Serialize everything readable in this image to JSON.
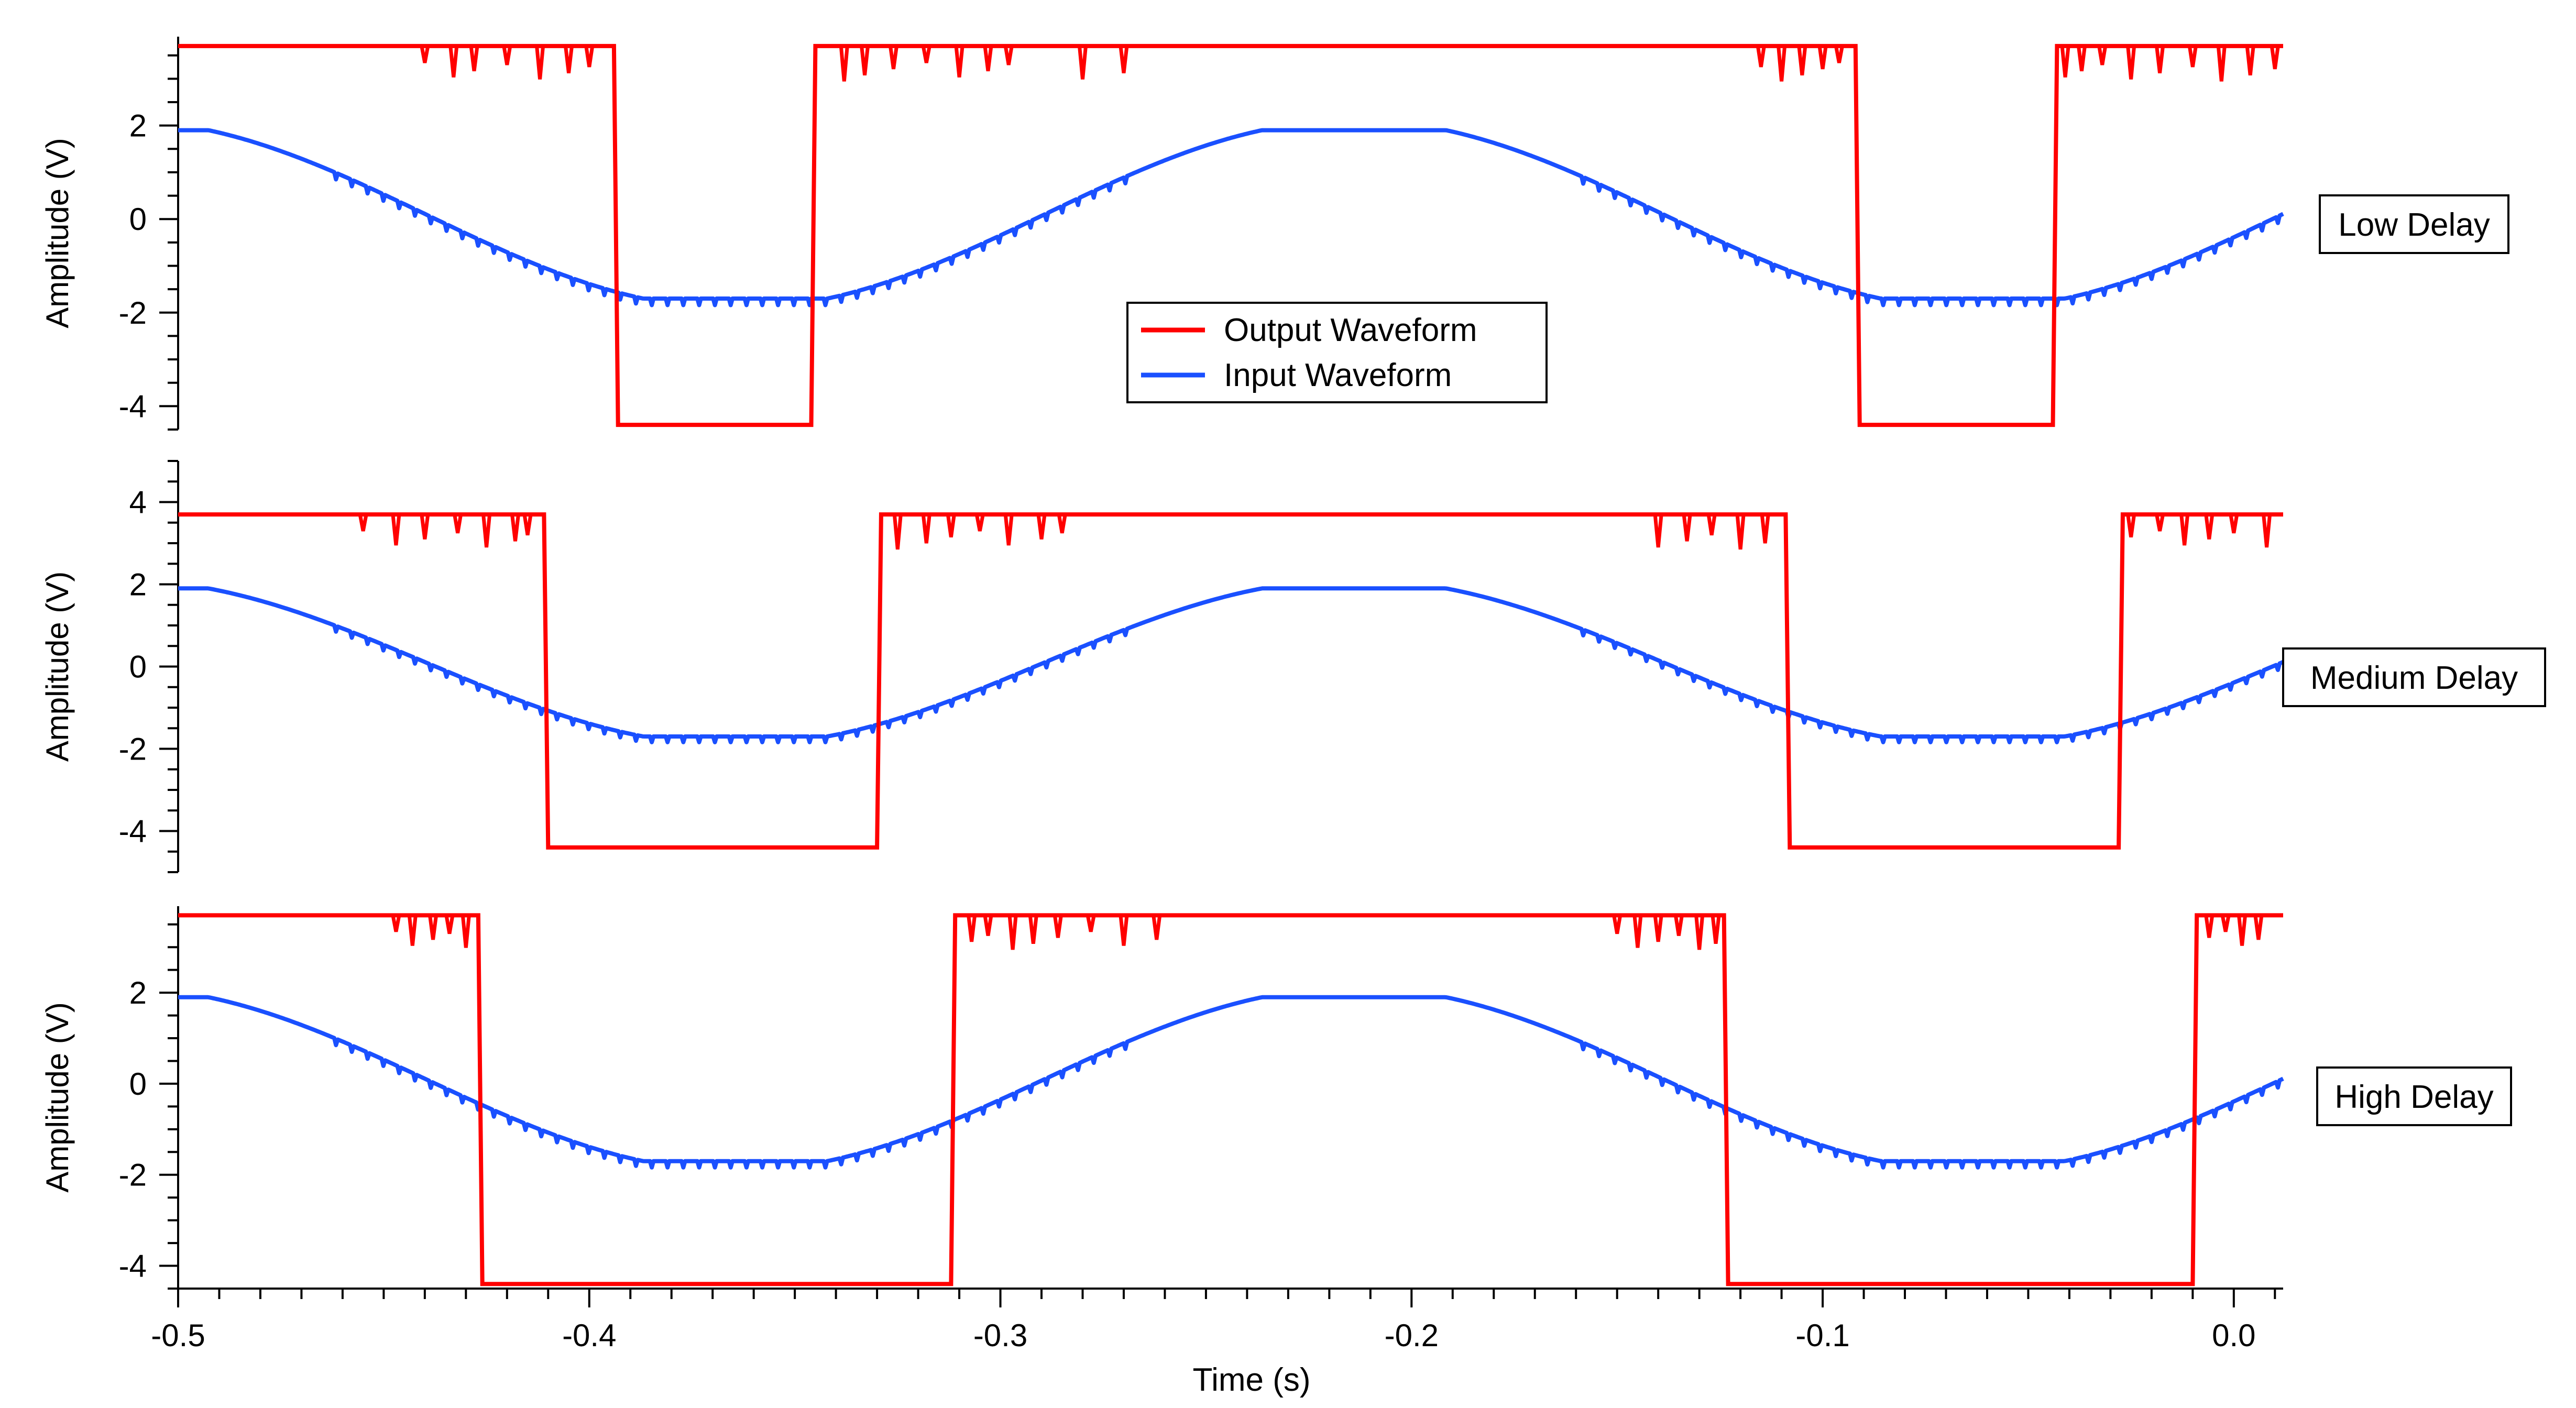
{
  "chart_data": [
    {
      "type": "line",
      "panel_label": "Low Delay",
      "xlabel": "",
      "ylabel": "Amplitude (V)",
      "xlim": [
        -0.5,
        0.012
      ],
      "ylim": [
        -4.5,
        3.9
      ],
      "y_ticks": [
        "2",
        "0",
        "-2",
        "-4"
      ],
      "y_tick_values": [
        2,
        0,
        -2,
        -4
      ],
      "series": [
        {
          "name": "Output Waveform",
          "color": "#ff0000",
          "points": [
            [
              -0.5,
              3.7
            ],
            [
              -0.394,
              3.7
            ],
            [
              -0.393,
              -4.4
            ],
            [
              -0.346,
              -4.4
            ],
            [
              -0.345,
              3.7
            ],
            [
              -0.092,
              3.7
            ],
            [
              -0.091,
              -4.4
            ],
            [
              -0.044,
              -4.4
            ],
            [
              -0.043,
              3.7
            ],
            [
              0.012,
              3.7
            ]
          ],
          "glitch_x": [
            -0.44,
            -0.433,
            -0.428,
            -0.42,
            -0.412,
            -0.405,
            -0.4,
            -0.338,
            -0.333,
            -0.326,
            -0.318,
            -0.31,
            -0.303,
            -0.298,
            -0.28,
            -0.27,
            -0.115,
            -0.11,
            -0.105,
            -0.1,
            -0.096,
            -0.041,
            -0.037,
            -0.032,
            -0.025,
            -0.018,
            -0.01,
            -0.003,
            0.004,
            0.01
          ],
          "glitch_depth": 0.8
        },
        {
          "name": "Input Waveform",
          "color": "#1a50ff",
          "period": 0.301,
          "x_start": -0.5,
          "x_end": 0.012,
          "y_max": 1.9,
          "y_min": -1.7,
          "x_peak": -0.214
        }
      ],
      "legend": {
        "position": "center",
        "entries": [
          "Output Waveform",
          "Input Waveform"
        ]
      }
    },
    {
      "type": "line",
      "panel_label": "Medium Delay",
      "xlabel": "",
      "ylabel": "Amplitude (V)",
      "xlim": [
        -0.5,
        0.012
      ],
      "ylim": [
        -5.0,
        5.0
      ],
      "y_ticks": [
        "4",
        "2",
        "0",
        "-2",
        "-4"
      ],
      "y_tick_values": [
        4,
        2,
        0,
        -2,
        -4
      ],
      "series": [
        {
          "name": "Output Waveform",
          "color": "#ff0000",
          "points": [
            [
              -0.5,
              3.7
            ],
            [
              -0.411,
              3.7
            ],
            [
              -0.41,
              -4.4
            ],
            [
              -0.33,
              -4.4
            ],
            [
              -0.329,
              3.7
            ],
            [
              -0.109,
              3.7
            ],
            [
              -0.108,
              -4.4
            ],
            [
              -0.028,
              -4.4
            ],
            [
              -0.027,
              3.7
            ],
            [
              0.012,
              3.7
            ]
          ],
          "glitch_x": [
            -0.455,
            -0.447,
            -0.44,
            -0.432,
            -0.425,
            -0.418,
            -0.415,
            -0.325,
            -0.318,
            -0.312,
            -0.305,
            -0.298,
            -0.29,
            -0.285,
            -0.14,
            -0.133,
            -0.127,
            -0.12,
            -0.114,
            -0.025,
            -0.018,
            -0.012,
            -0.006,
            0.0,
            0.008
          ],
          "glitch_depth": 0.9
        },
        {
          "name": "Input Waveform",
          "color": "#1a50ff",
          "period": 0.301,
          "x_start": -0.5,
          "x_end": 0.012,
          "y_max": 1.9,
          "y_min": -1.7,
          "x_peak": -0.214
        }
      ]
    },
    {
      "type": "line",
      "panel_label": "High Delay",
      "xlabel": "Time (s)",
      "ylabel": "Amplitude (V)",
      "xlim": [
        -0.5,
        0.012
      ],
      "ylim": [
        -4.5,
        3.9
      ],
      "y_ticks": [
        "2",
        "0",
        "-2",
        "-4"
      ],
      "y_tick_values": [
        2,
        0,
        -2,
        -4
      ],
      "x_ticks": [
        "-0.5",
        "-0.4",
        "-0.3",
        "-0.2",
        "-0.1",
        "0.0"
      ],
      "x_tick_values": [
        -0.5,
        -0.4,
        -0.3,
        -0.2,
        -0.1,
        0.0
      ],
      "series": [
        {
          "name": "Output Waveform",
          "color": "#ff0000",
          "points": [
            [
              -0.5,
              3.7
            ],
            [
              -0.427,
              3.7
            ],
            [
              -0.426,
              -4.4
            ],
            [
              -0.312,
              -4.4
            ],
            [
              -0.311,
              3.7
            ],
            [
              -0.124,
              3.7
            ],
            [
              -0.123,
              -4.4
            ],
            [
              -0.01,
              -4.4
            ],
            [
              -0.009,
              3.7
            ],
            [
              0.012,
              3.7
            ]
          ],
          "glitch_x": [
            -0.447,
            -0.443,
            -0.438,
            -0.434,
            -0.43,
            -0.307,
            -0.303,
            -0.297,
            -0.292,
            -0.286,
            -0.278,
            -0.27,
            -0.262,
            -0.15,
            -0.145,
            -0.14,
            -0.135,
            -0.13,
            -0.126,
            -0.006,
            -0.002,
            0.002,
            0.006
          ],
          "glitch_depth": 0.8
        },
        {
          "name": "Input Waveform",
          "color": "#1a50ff",
          "period": 0.301,
          "x_start": -0.5,
          "x_end": 0.012,
          "y_max": 1.9,
          "y_min": -1.7,
          "x_peak": -0.214
        }
      ]
    }
  ]
}
